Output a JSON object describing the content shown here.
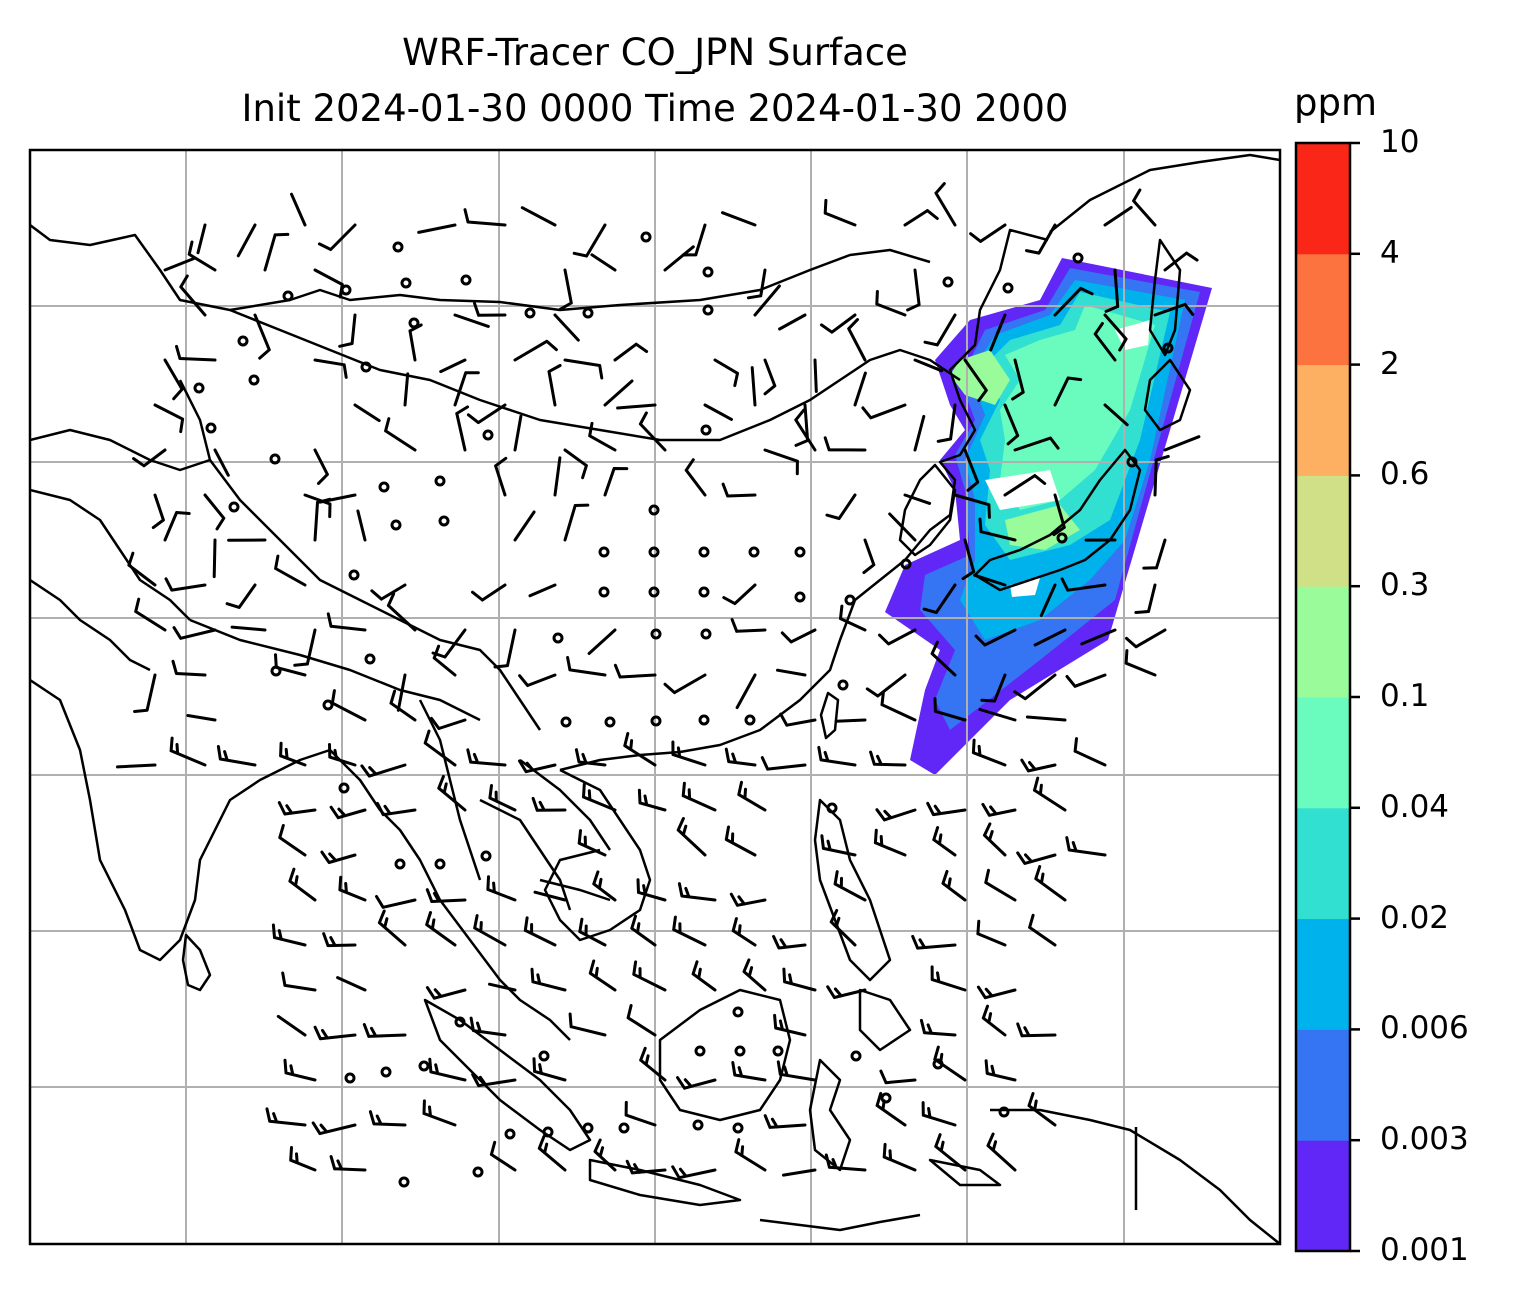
{
  "title": {
    "line1": "WRF-Tracer CO_JPN Surface",
    "line2": "Init 2024-01-30 0000 Time 2024-01-30 2000"
  },
  "colorbar": {
    "unit": "ppm",
    "levels": [
      "0.001",
      "0.003",
      "0.006",
      "0.02",
      "0.04",
      "0.1",
      "0.3",
      "0.6",
      "2",
      "4",
      "10"
    ],
    "colors": [
      "#6127f7",
      "#3574f2",
      "#00b2eb",
      "#31e0d0",
      "#6afcbf",
      "#99fb99",
      "#d0e086",
      "#feb062",
      "#fd7340",
      "#fa2618"
    ]
  },
  "map": {
    "gridlines": true,
    "features": [
      "coastlines",
      "country borders",
      "wind barbs",
      "tracer concentration shading"
    ]
  }
}
